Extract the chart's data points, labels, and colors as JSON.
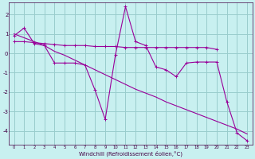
{
  "xlabel": "Windchill (Refroidissement éolien,°C)",
  "bg_color": "#c8f0f0",
  "grid_color": "#99cccc",
  "line_color": "#990099",
  "tick_color": "#440044",
  "hours": [
    0,
    1,
    2,
    3,
    4,
    5,
    6,
    7,
    8,
    9,
    10,
    11,
    12,
    13,
    14,
    15,
    16,
    17,
    18,
    19,
    20,
    21,
    22,
    23
  ],
  "zigzag": [
    0.9,
    1.3,
    0.5,
    0.4,
    -0.5,
    -0.5,
    -0.5,
    -0.6,
    -1.9,
    -3.4,
    -0.1,
    2.4,
    0.6,
    0.4,
    -0.7,
    -0.85,
    -1.2,
    -0.5,
    -0.45,
    -0.45,
    -0.45,
    -2.5,
    -4.1,
    -4.5
  ],
  "flat_line": [
    0.6,
    0.6,
    0.55,
    0.5,
    0.45,
    0.4,
    0.4,
    0.4,
    0.35,
    0.35,
    0.35,
    0.3,
    0.3,
    0.3,
    0.3,
    0.3,
    0.3,
    0.3,
    0.3,
    0.3,
    0.2,
    null,
    null,
    null
  ],
  "diag_line": [
    1.0,
    0.8,
    0.6,
    0.4,
    0.1,
    -0.1,
    -0.35,
    -0.6,
    -0.85,
    -1.1,
    -1.35,
    -1.6,
    -1.85,
    -2.05,
    -2.25,
    -2.5,
    -2.7,
    -2.9,
    -3.1,
    -3.3,
    -3.5,
    -3.7,
    -3.9,
    -4.15
  ],
  "ylim": [
    -4.7,
    2.6
  ],
  "xlim": [
    -0.5,
    23.5
  ],
  "yticks": [
    -4,
    -3,
    -2,
    -1,
    0,
    1,
    2
  ],
  "xticks": [
    0,
    1,
    2,
    3,
    4,
    5,
    6,
    7,
    8,
    9,
    10,
    11,
    12,
    13,
    14,
    15,
    16,
    17,
    18,
    19,
    20,
    21,
    22,
    23
  ]
}
